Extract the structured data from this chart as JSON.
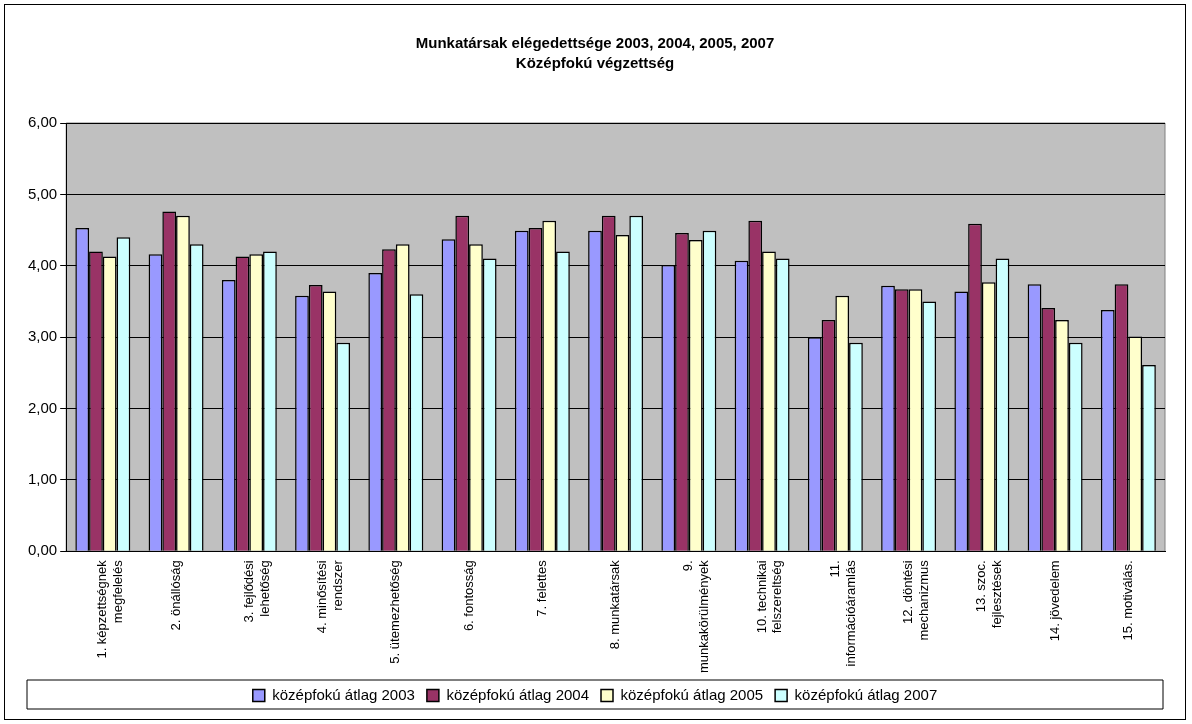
{
  "chart_data": {
    "type": "bar",
    "title": "Munkatársak elégedettsége 2003, 2004, 2005, 2007",
    "subtitle": "Középfokú végzettség",
    "categories": [
      "1. képzettségnek megfelelés",
      "2. önállóság",
      "3. fejlődési lehetőség",
      "4. minősítési rendszer",
      "5. ütemezhetőség",
      "6. fontosság",
      "7. felettes",
      "8. munkatársak",
      "9. munkakörülmények",
      "10. technikai felszereltség",
      "11. információáramlás",
      "12. döntési mechanizmus",
      "13. szoc. fejlesztések",
      "14. jövedelem",
      "15. motiválás."
    ],
    "series": [
      {
        "name": "középfokú átlag 2003",
        "color": "#9999ff",
        "values": [
          4.53,
          4.16,
          3.8,
          3.58,
          3.9,
          4.37,
          4.49,
          4.49,
          4.01,
          4.07,
          3.0,
          3.72,
          3.64,
          3.74,
          3.38
        ]
      },
      {
        "name": "középfokú átlag 2004",
        "color": "#993366",
        "values": [
          4.2,
          4.76,
          4.13,
          3.73,
          4.23,
          4.7,
          4.53,
          4.7,
          4.46,
          4.63,
          3.24,
          3.67,
          4.59,
          3.41,
          3.74
        ]
      },
      {
        "name": "középfokú átlag 2005",
        "color": "#ffffcc",
        "values": [
          4.13,
          4.7,
          4.16,
          3.64,
          4.3,
          4.3,
          4.63,
          4.43,
          4.36,
          4.2,
          3.58,
          3.67,
          3.77,
          3.24,
          3.01
        ]
      },
      {
        "name": "középfokú átlag 2007",
        "color": "#ccffff",
        "values": [
          4.4,
          4.3,
          4.2,
          2.92,
          3.6,
          4.1,
          4.2,
          4.7,
          4.49,
          4.1,
          2.92,
          3.5,
          4.1,
          2.92,
          2.61
        ]
      }
    ],
    "ylim": [
      0,
      6
    ],
    "yticks": [
      {
        "value": 0,
        "label": "0,00"
      },
      {
        "value": 1,
        "label": "1,00"
      },
      {
        "value": 2,
        "label": "2,00"
      },
      {
        "value": 3,
        "label": "3,00"
      },
      {
        "value": 4,
        "label": "4,00"
      },
      {
        "value": 5,
        "label": "5,00"
      },
      {
        "value": 6,
        "label": "6,00"
      }
    ],
    "grid": "y",
    "legend": "bottom"
  }
}
